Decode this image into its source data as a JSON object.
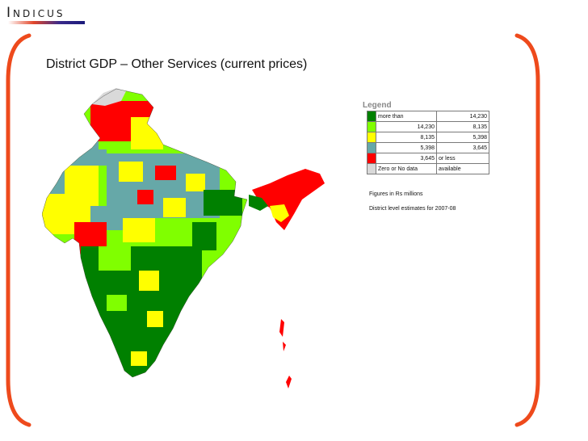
{
  "logo": {
    "text": "Indicus"
  },
  "title": "District GDP – Other Services (current prices)",
  "legend": {
    "title": "Legend",
    "rows": [
      {
        "color": "#008000",
        "from": "more than",
        "to": "14,230"
      },
      {
        "color": "#80ff00",
        "from": "14,230",
        "to": "8,135"
      },
      {
        "color": "#ffff00",
        "from": "8,135",
        "to": "5,398"
      },
      {
        "color": "#66a8a8",
        "from": "5,398",
        "to": "3,645"
      },
      {
        "color": "#ff0000",
        "from": "3,645",
        "to": "or less"
      },
      {
        "color": "#d9d9d9",
        "from": "Zero or No data",
        "to": "available"
      }
    ]
  },
  "notes": {
    "units": "Figures in Rs millions",
    "period": "District level estimates for 2007-08"
  },
  "colors": {
    "accent": "#ee4a1c"
  }
}
